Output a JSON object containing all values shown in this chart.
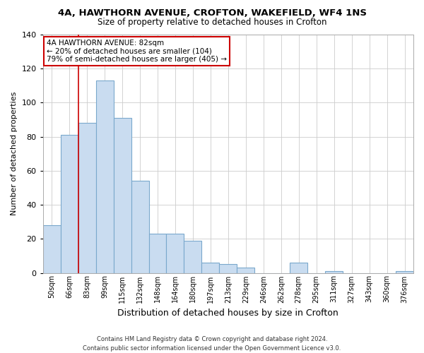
{
  "title1": "4A, HAWTHORN AVENUE, CROFTON, WAKEFIELD, WF4 1NS",
  "title2": "Size of property relative to detached houses in Crofton",
  "xlabel": "Distribution of detached houses by size in Crofton",
  "ylabel": "Number of detached properties",
  "categories": [
    "50sqm",
    "66sqm",
    "83sqm",
    "99sqm",
    "115sqm",
    "132sqm",
    "148sqm",
    "164sqm",
    "180sqm",
    "197sqm",
    "213sqm",
    "229sqm",
    "246sqm",
    "262sqm",
    "278sqm",
    "295sqm",
    "311sqm",
    "327sqm",
    "343sqm",
    "360sqm",
    "376sqm"
  ],
  "values": [
    28,
    81,
    88,
    113,
    91,
    54,
    23,
    23,
    19,
    6,
    5,
    3,
    0,
    0,
    6,
    0,
    1,
    0,
    0,
    0,
    1
  ],
  "bar_color": "#c9dcf0",
  "bar_edge_color": "#7aa8cc",
  "ylim": [
    0,
    140
  ],
  "yticks": [
    0,
    20,
    40,
    60,
    80,
    100,
    120,
    140
  ],
  "property_line_idx": 2,
  "property_line_color": "#cc0000",
  "annotation_title": "4A HAWTHORN AVENUE: 82sqm",
  "annotation_line2": "← 20% of detached houses are smaller (104)",
  "annotation_line3": "79% of semi-detached houses are larger (405) →",
  "annotation_box_color": "#ffffff",
  "annotation_box_edge": "#cc0000",
  "footer_line1": "Contains HM Land Registry data © Crown copyright and database right 2024.",
  "footer_line2": "Contains public sector information licensed under the Open Government Licence v3.0.",
  "background_color": "#ffffff",
  "grid_color": "#cccccc"
}
